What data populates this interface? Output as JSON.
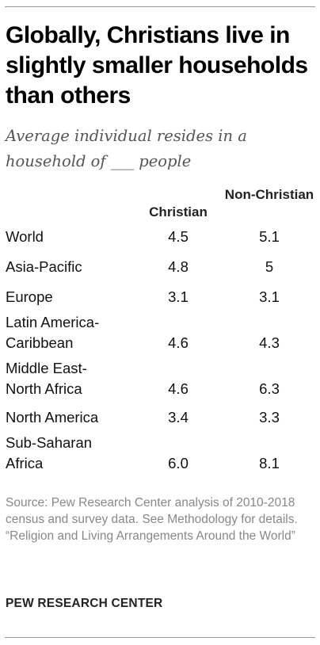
{
  "chart_data": {
    "type": "table",
    "title": "Globally, Christians live in slightly smaller households than others",
    "subtitle": "Average individual resides in a household of ___ people",
    "columns": [
      "Christian",
      "Non-Christian"
    ],
    "rows": [
      {
        "label": "World",
        "christian": "4.5",
        "non_christian": "5.1"
      },
      {
        "label": "Asia-Pacific",
        "christian": "4.8",
        "non_christian": "5"
      },
      {
        "label": "Europe",
        "christian": "3.1",
        "non_christian": "3.1"
      },
      {
        "label": "Latin America-Caribbean",
        "christian": "4.6",
        "non_christian": "4.3"
      },
      {
        "label": "Middle East-North Africa",
        "christian": "4.6",
        "non_christian": "6.3"
      },
      {
        "label": "North America",
        "christian": "3.4",
        "non_christian": "3.3"
      },
      {
        "label": "Sub-Saharan Africa",
        "christian": "6.0",
        "non_christian": "8.1"
      }
    ]
  },
  "source": "Source: Pew Research Center analysis of 2010-2018 census and survey data. See Methodology for details.",
  "report_title": "“Religion and Living Arrangements Around the World”",
  "brand": "PEW RESEARCH CENTER"
}
